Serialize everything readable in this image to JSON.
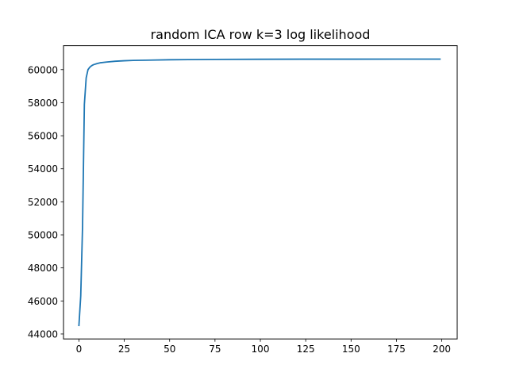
{
  "chart_data": {
    "type": "line",
    "title": "random ICA row k=3 log likelihood",
    "xlabel": "",
    "ylabel": "",
    "xlim": [
      -8.5,
      208.5
    ],
    "ylim": [
      43700,
      61450
    ],
    "x_ticks": [
      0,
      25,
      50,
      75,
      100,
      125,
      150,
      175,
      200
    ],
    "y_ticks": [
      44000,
      46000,
      48000,
      50000,
      52000,
      54000,
      56000,
      58000,
      60000
    ],
    "x_tick_labels": [
      "0",
      "25",
      "50",
      "75",
      "100",
      "125",
      "150",
      "175",
      "200"
    ],
    "y_tick_labels": [
      "44000",
      "46000",
      "48000",
      "50000",
      "52000",
      "54000",
      "56000",
      "58000",
      "60000"
    ],
    "grid": false,
    "legend": "none",
    "series": [
      {
        "color": "#1f77b4",
        "x": [
          0,
          1,
          2,
          3,
          4,
          5,
          6,
          7,
          8,
          10,
          12,
          15,
          20,
          25,
          30,
          40,
          50,
          60,
          75,
          100,
          125,
          150,
          175,
          199
        ],
        "values": [
          44520,
          46300,
          50500,
          57900,
          59500,
          60000,
          60150,
          60240,
          60300,
          60370,
          60420,
          60460,
          60510,
          60540,
          60560,
          60580,
          60600,
          60610,
          60620,
          60630,
          60635,
          60635,
          60640,
          60640
        ]
      }
    ]
  }
}
